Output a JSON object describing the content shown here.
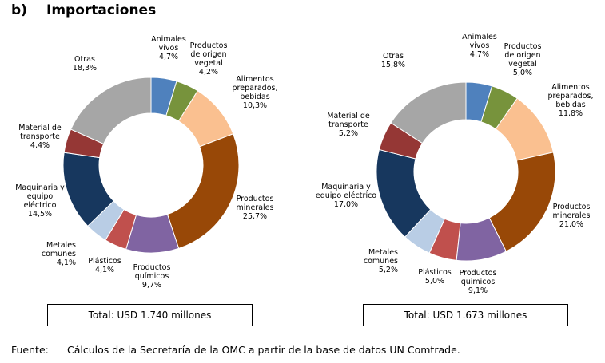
{
  "heading": {
    "letter": "b)",
    "title": "Importaciones"
  },
  "chart_data": [
    {
      "type": "pie",
      "total": "Total: USD 1.740 millones",
      "slices": [
        {
          "label": [
            "Animales",
            "vivos"
          ],
          "value_text": "4,7%",
          "value": 4.7,
          "color": "#4f81bd"
        },
        {
          "label": [
            "Productos",
            "de origen",
            "vegetal"
          ],
          "value_text": "4,2%",
          "value": 4.2,
          "color": "#77933c"
        },
        {
          "label": [
            "Alimentos",
            "preparados,",
            "bebidas"
          ],
          "value_text": "10,3%",
          "value": 10.3,
          "color": "#fac090"
        },
        {
          "label": [
            "Productos",
            "minerales"
          ],
          "value_text": "25,7%",
          "value": 25.7,
          "color": "#984807"
        },
        {
          "label": [
            "Productos",
            "químicos"
          ],
          "value_text": "9,7%",
          "value": 9.7,
          "color": "#8064a2"
        },
        {
          "label": [
            "Plásticos"
          ],
          "value_text": "4,1%",
          "value": 4.1,
          "color": "#c0504d"
        },
        {
          "label": [
            "Metales",
            "comunes"
          ],
          "value_text": "4,1%",
          "value": 4.1,
          "color": "#b9cde5"
        },
        {
          "label": [
            "Maquinaria y",
            "equipo",
            "eléctrico"
          ],
          "value_text": "14,5%",
          "value": 14.5,
          "color": "#17375e"
        },
        {
          "label": [
            "Material de",
            "transporte"
          ],
          "value_text": "4,4%",
          "value": 4.4,
          "color": "#953735"
        },
        {
          "label": [
            "Otras"
          ],
          "value_text": "18,3%",
          "value": 18.3,
          "color": "#a6a6a6"
        }
      ]
    },
    {
      "type": "pie",
      "total": "Total: USD 1.673 millones",
      "slices": [
        {
          "label": [
            "Animales",
            "vivos"
          ],
          "value_text": "4,7%",
          "value": 4.7,
          "color": "#4f81bd"
        },
        {
          "label": [
            "Productos",
            "de origen",
            "vegetal"
          ],
          "value_text": "5,0%",
          "value": 5.0,
          "color": "#77933c"
        },
        {
          "label": [
            "Alimentos",
            "preparados,",
            "bebidas"
          ],
          "value_text": "11,8%",
          "value": 11.8,
          "color": "#fac090"
        },
        {
          "label": [
            "Productos",
            "minerales"
          ],
          "value_text": "21,0%",
          "value": 21.0,
          "color": "#984807"
        },
        {
          "label": [
            "Productos",
            "químicos"
          ],
          "value_text": "9,1%",
          "value": 9.1,
          "color": "#8064a2"
        },
        {
          "label": [
            "Plásticos"
          ],
          "value_text": "5,0%",
          "value": 5.0,
          "color": "#c0504d"
        },
        {
          "label": [
            "Metales",
            "comunes"
          ],
          "value_text": "5,2%",
          "value": 5.2,
          "color": "#b9cde5"
        },
        {
          "label": [
            "Maquinaria y",
            "equipo eléctrico"
          ],
          "value_text": "17,0%",
          "value": 17.0,
          "color": "#17375e"
        },
        {
          "label": [
            "Material de",
            "transporte"
          ],
          "value_text": "5,2%",
          "value": 5.2,
          "color": "#953735"
        },
        {
          "label": [
            "Otras"
          ],
          "value_text": "15,8%",
          "value": 15.8,
          "color": "#a6a6a6"
        }
      ]
    }
  ],
  "source": {
    "label": "Fuente:",
    "text": "Cálculos de la Secretaría de la OMC a partir de la base de datos UN Comtrade."
  }
}
